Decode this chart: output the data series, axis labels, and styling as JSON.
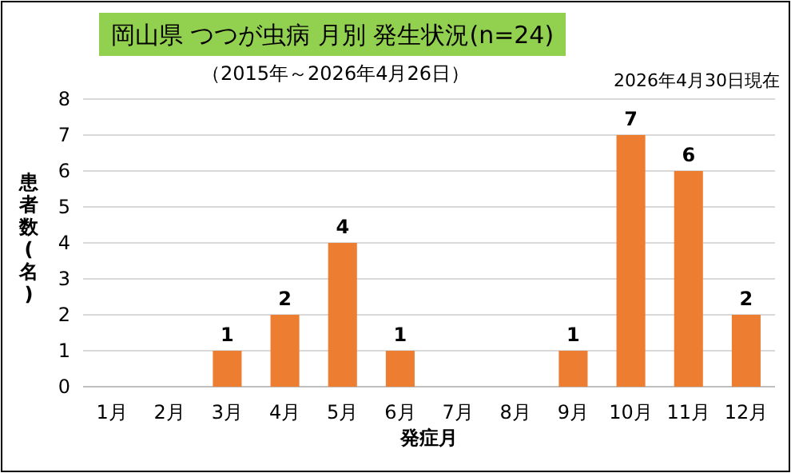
{
  "chart_data": {
    "type": "bar",
    "title": "岡山県 つつが虫病 月別 発生状況(n=24)",
    "subtitle": "（2015年～2026年4月26日）",
    "annotations": [
      "2026年4月30日現在"
    ],
    "xlabel": "発症月",
    "ylabel": "患者数(名)",
    "categories": [
      "1月",
      "2月",
      "3月",
      "4月",
      "5月",
      "6月",
      "7月",
      "8月",
      "9月",
      "10月",
      "11月",
      "12月"
    ],
    "values": [
      0,
      0,
      1,
      2,
      4,
      1,
      0,
      0,
      1,
      7,
      6,
      2
    ],
    "value_labels": [
      null,
      null,
      "1",
      "2",
      "4",
      "1",
      null,
      null,
      "1",
      "7",
      "6",
      "2"
    ],
    "color": "#ed7d31",
    "ylim": [
      0,
      8
    ],
    "yticks": [
      0,
      1,
      2,
      3,
      4,
      5,
      6,
      7,
      8
    ],
    "grid": "y"
  }
}
